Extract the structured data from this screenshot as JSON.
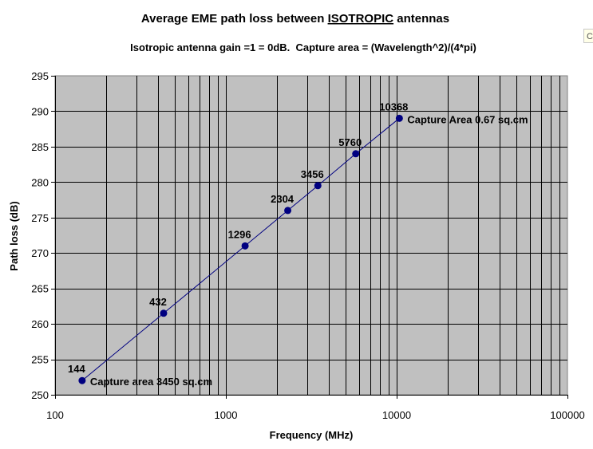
{
  "chart_data": {
    "type": "scatter",
    "title_prefix": "Average EME path loss between ",
    "title_emphasis": "ISOTROPIC",
    "title_suffix": " antennas",
    "subtitle": "Isotropic antenna gain =1 = 0dB.  Capture area = (Wavelength^2)/(4*pi)",
    "xlabel": "Frequency (MHz)",
    "ylabel": "Path loss (dB)",
    "x_scale": "log",
    "xlim": [
      100,
      100000
    ],
    "ylim": [
      250,
      295
    ],
    "x_ticks": [
      "100",
      "1000",
      "10000",
      "100000"
    ],
    "y_ticks": [
      "250",
      "255",
      "260",
      "265",
      "270",
      "275",
      "280",
      "285",
      "290",
      "295"
    ],
    "grid": true,
    "plot_background": "#c0c0c0",
    "series_color": "#000080",
    "series": [
      {
        "points": [
          {
            "x": 144,
            "y": 252.0,
            "label": "144"
          },
          {
            "x": 432,
            "y": 261.5,
            "label": "432"
          },
          {
            "x": 1296,
            "y": 271.0,
            "label": "1296"
          },
          {
            "x": 2304,
            "y": 276.0,
            "label": "2304"
          },
          {
            "x": 3456,
            "y": 279.5,
            "label": "3456"
          },
          {
            "x": 5760,
            "y": 284.0,
            "label": "5760"
          },
          {
            "x": 10368,
            "y": 289.0,
            "label": "10368"
          }
        ]
      }
    ],
    "annotations": [
      {
        "text": "Capture area 3450 sq.cm",
        "x": 144,
        "y": 252.0
      },
      {
        "text": "Capture Area 0.67 sq.cm",
        "x": 10368,
        "y": 289.0
      }
    ]
  },
  "corner_fragment": "C"
}
